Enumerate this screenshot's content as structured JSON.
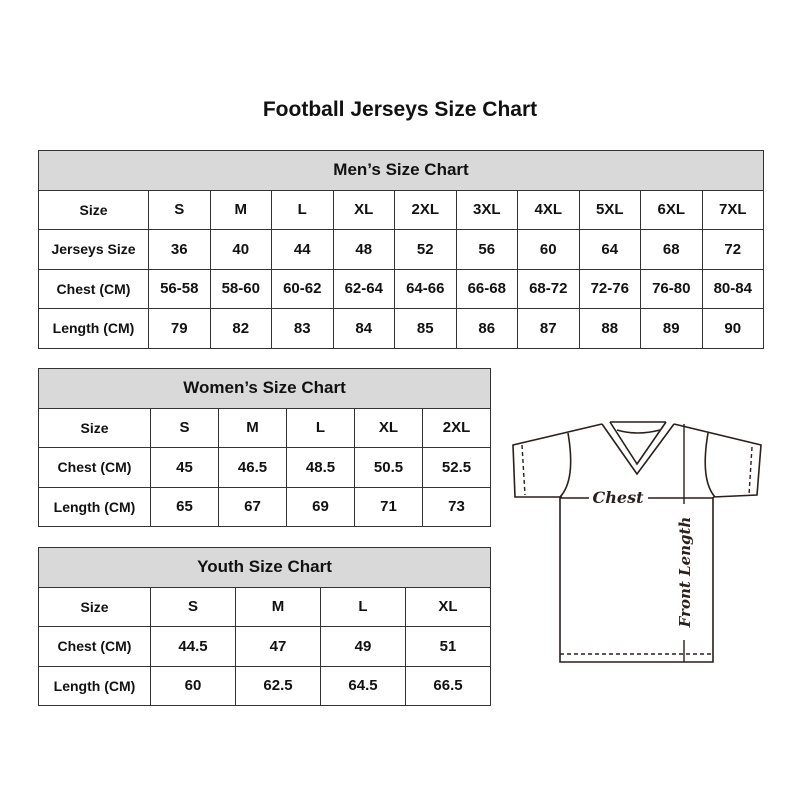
{
  "title": "Football Jerseys Size Chart",
  "men": {
    "heading": "Men’s Size Chart",
    "rows": [
      {
        "label": "Size",
        "values": [
          "S",
          "M",
          "L",
          "XL",
          "2XL",
          "3XL",
          "4XL",
          "5XL",
          "6XL",
          "7XL"
        ]
      },
      {
        "label": "Jerseys Size",
        "values": [
          "36",
          "40",
          "44",
          "48",
          "52",
          "56",
          "60",
          "64",
          "68",
          "72"
        ]
      },
      {
        "label": "Chest (CM)",
        "values": [
          "56-58",
          "58-60",
          "60-62",
          "62-64",
          "64-66",
          "66-68",
          "68-72",
          "72-76",
          "76-80",
          "80-84"
        ]
      },
      {
        "label": "Length (CM)",
        "values": [
          "79",
          "82",
          "83",
          "84",
          "85",
          "86",
          "87",
          "88",
          "89",
          "90"
        ]
      }
    ]
  },
  "women": {
    "heading": "Women’s Size Chart",
    "rows": [
      {
        "label": "Size",
        "values": [
          "S",
          "M",
          "L",
          "XL",
          "2XL"
        ]
      },
      {
        "label": "Chest (CM)",
        "values": [
          "45",
          "46.5",
          "48.5",
          "50.5",
          "52.5"
        ]
      },
      {
        "label": "Length (CM)",
        "values": [
          "65",
          "67",
          "69",
          "71",
          "73"
        ]
      }
    ]
  },
  "youth": {
    "heading": "Youth Size Chart",
    "rows": [
      {
        "label": "Size",
        "values": [
          "S",
          "M",
          "L",
          "XL"
        ]
      },
      {
        "label": "Chest (CM)",
        "values": [
          "44.5",
          "47",
          "49",
          "51"
        ]
      },
      {
        "label": "Length (CM)",
        "values": [
          "60",
          "62.5",
          "64.5",
          "66.5"
        ]
      }
    ]
  },
  "diagram": {
    "chest_label": "Chest",
    "length_label": "Front Length",
    "line_color": "#2a1f1a"
  }
}
